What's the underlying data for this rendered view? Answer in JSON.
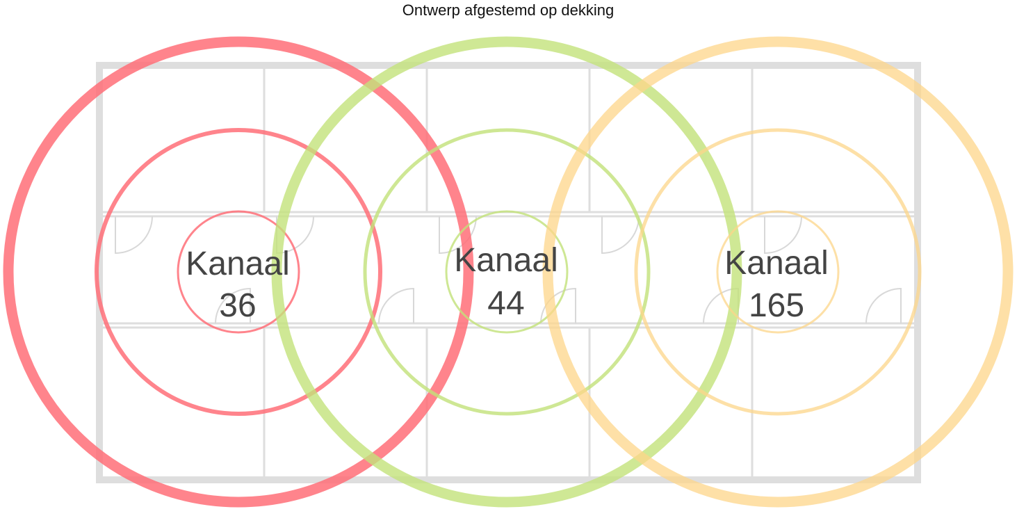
{
  "title": "Ontwerp afgestemd op dekking",
  "nodes": [
    {
      "label": "Kanaal",
      "channel": "36"
    },
    {
      "label": "Kanaal",
      "channel": "44"
    },
    {
      "label": "Kanaal",
      "channel": "165"
    }
  ]
}
